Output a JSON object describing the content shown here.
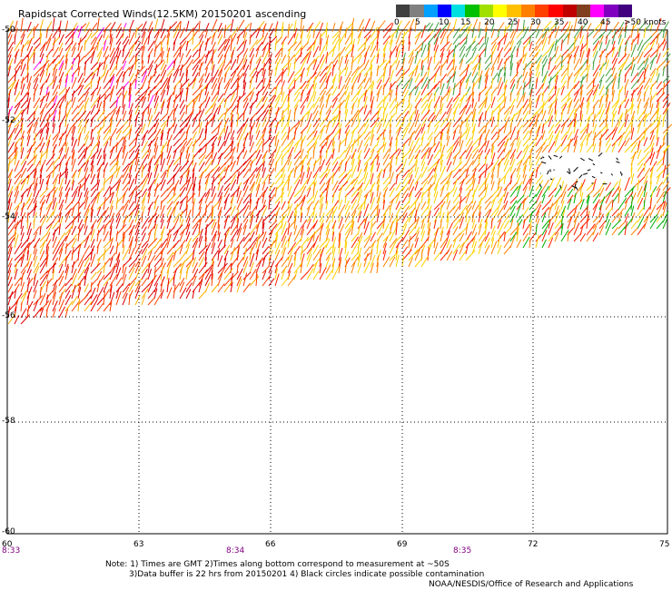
{
  "title": "Rapidscat Corrected Winds(12.5KM) 20150201 ascending",
  "colorbar": {
    "colors": [
      "#404040",
      "#808080",
      "#00a0ff",
      "#0000ff",
      "#00e0e0",
      "#00c000",
      "#a0e000",
      "#ffff00",
      "#ffc000",
      "#ff8000",
      "#ff4000",
      "#ff0000",
      "#c00000",
      "#804020",
      "#ff00ff",
      "#8000c0",
      "#400080"
    ],
    "labels": [
      "0",
      "5",
      "10",
      "15",
      "20",
      "25",
      "30",
      "35",
      "40",
      "45",
      ">50 knots"
    ]
  },
  "lat_labels": [
    "-50",
    "-52",
    "-54",
    "-56",
    "-58",
    "-60"
  ],
  "lon_labels": [
    "60",
    "63",
    "66",
    "69",
    "72",
    "75"
  ],
  "time_labels": [
    "8:33",
    "8:34",
    "8:35"
  ],
  "notes": {
    "line1": "Note: 1) Times are GMT 2)Times along bottom correspond to measurement at ~50S",
    "line2": "3)Data buffer is 22 hrs from 20150201 4) Black circles indicate possible contamination",
    "line3": "NOAA/NESDIS/Office of Research and Applications"
  }
}
